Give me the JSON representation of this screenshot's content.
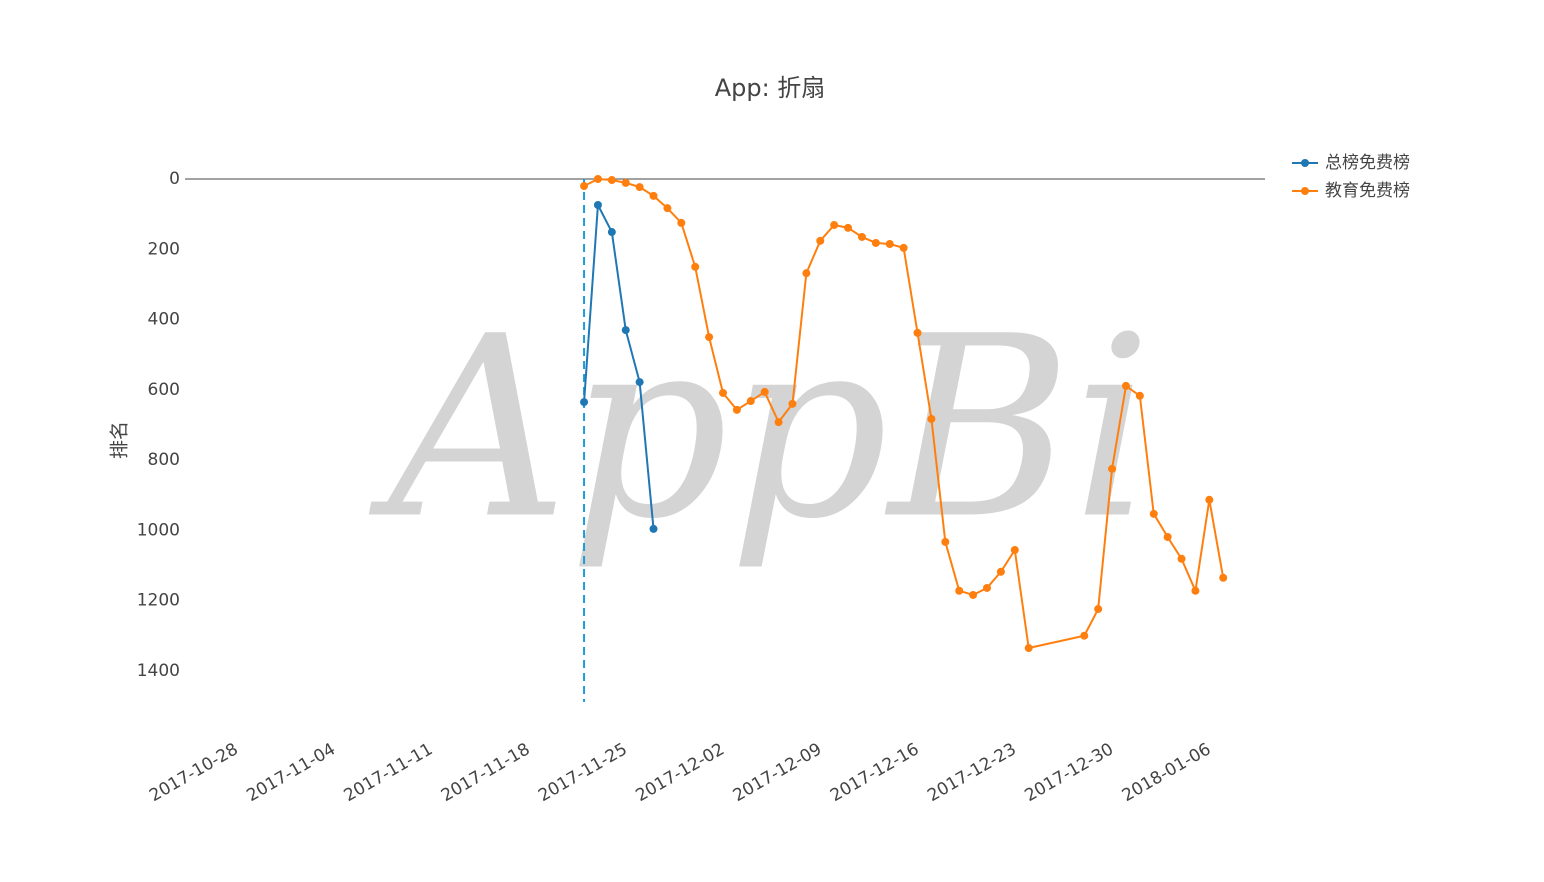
{
  "chart_data": {
    "type": "line",
    "title": "App: 折扇",
    "y_label": "排名",
    "watermark": "AppBi",
    "xlim": [
      "2017-10-25",
      "2018-01-09"
    ],
    "xticks": [
      "2017-10-28",
      "2017-11-04",
      "2017-11-11",
      "2017-11-18",
      "2017-11-25",
      "2017-12-02",
      "2017-12-09",
      "2017-12-16",
      "2017-12-23",
      "2017-12-30",
      "2018-01-06"
    ],
    "ylim": [
      0,
      1500
    ],
    "y_reversed": true,
    "yticks": [
      0,
      200,
      400,
      600,
      800,
      1000,
      1200,
      1400
    ],
    "vline": {
      "x": "2017-11-22",
      "color": "#1f9bd7"
    },
    "legend": "top-right",
    "series": [
      {
        "name": "总榜免费榜",
        "color": "#1f77b4",
        "x": [
          "2017-11-22",
          "2017-11-23",
          "2017-11-24",
          "2017-11-25",
          "2017-11-26",
          "2017-11-27"
        ],
        "values": [
          635,
          74,
          151,
          430,
          578,
          996
        ]
      },
      {
        "name": "教育免费榜",
        "color": "#ff7f0e",
        "x": [
          "2017-11-22",
          "2017-11-23",
          "2017-11-24",
          "2017-11-25",
          "2017-11-26",
          "2017-11-27",
          "2017-11-28",
          "2017-11-29",
          "2017-11-30",
          "2017-12-01",
          "2017-12-02",
          "2017-12-03",
          "2017-12-04",
          "2017-12-05",
          "2017-12-06",
          "2017-12-07",
          "2017-12-08",
          "2017-12-09",
          "2017-12-10",
          "2017-12-11",
          "2017-12-12",
          "2017-12-13",
          "2017-12-14",
          "2017-12-15",
          "2017-12-16",
          "2017-12-17",
          "2017-12-18",
          "2017-12-19",
          "2017-12-20",
          "2017-12-21",
          "2017-12-22",
          "2017-12-23",
          "2017-12-24",
          "2017-12-28",
          "2017-12-29",
          "2017-12-30",
          "2017-12-31",
          "2018-01-01",
          "2018-01-02",
          "2018-01-03",
          "2018-01-04",
          "2018-01-05",
          "2018-01-06",
          "2018-01-07"
        ],
        "values": [
          20,
          0,
          3,
          11,
          23,
          48,
          83,
          125,
          250,
          450,
          609,
          657,
          632,
          606,
          692,
          640,
          268,
          176,
          131,
          139,
          165,
          182,
          185,
          196,
          438,
          683,
          1033,
          1172,
          1184,
          1164,
          1118,
          1056,
          1335,
          1300,
          1224,
          825,
          589,
          617,
          953,
          1019,
          1081,
          1172,
          913,
          1135
        ]
      }
    ]
  }
}
